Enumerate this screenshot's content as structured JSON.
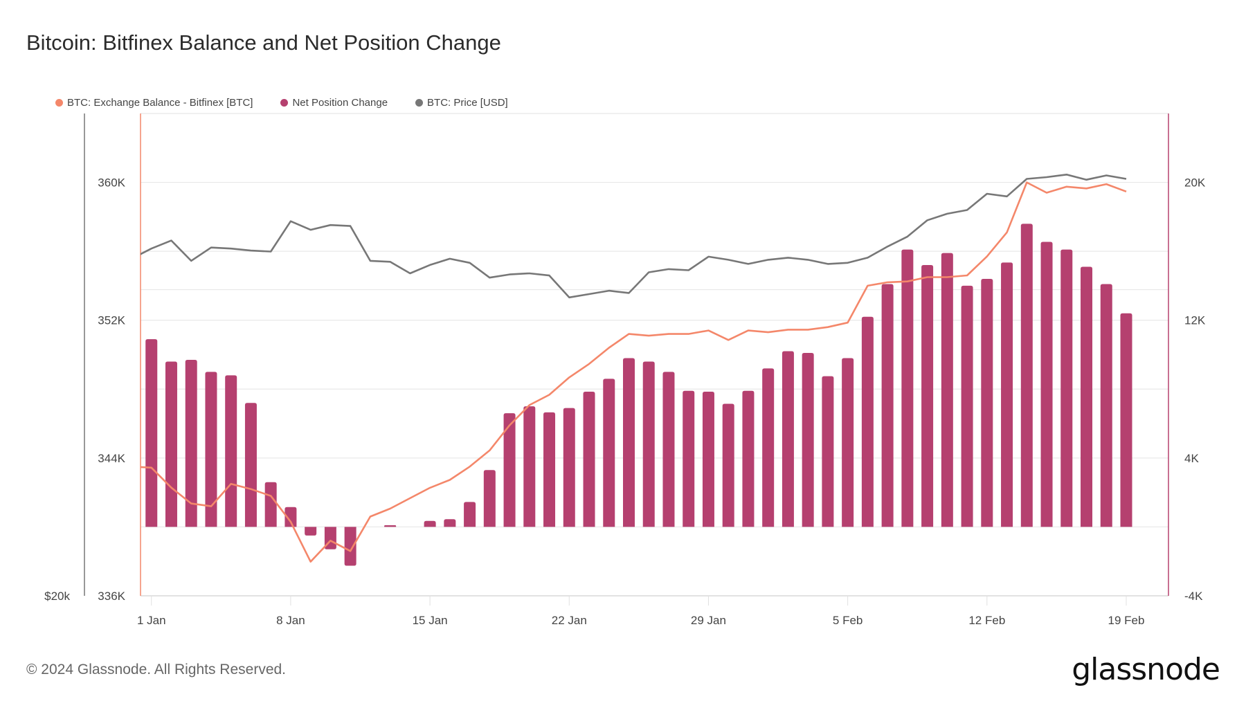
{
  "title": "Bitcoin: Bitfinex Balance and Net Position Change",
  "footer": "© 2024 Glassnode. All Rights Reserved.",
  "logo": "glassnode",
  "legend": [
    {
      "label": "BTC: Exchange Balance - Bitfinex [BTC]",
      "color": "#f4876a"
    },
    {
      "label": "Net Position Change",
      "color": "#b5406f"
    },
    {
      "label": "BTC: Price [USD]",
      "color": "#777777"
    }
  ],
  "chart_data": {
    "type": "bar+line",
    "title": "Bitcoin: Bitfinex Balance and Net Position Change",
    "x_tick_labels": [
      "1 Jan",
      "8 Jan",
      "15 Jan",
      "22 Jan",
      "29 Jan",
      "5 Feb",
      "12 Feb",
      "19 Feb"
    ],
    "left_axis": {
      "ticks": [
        "336K",
        "344K",
        "352K",
        "360K"
      ],
      "ylim": [
        336000,
        364000
      ]
    },
    "right_axis": {
      "ticks": [
        "-4K",
        "4K",
        "12K",
        "20K"
      ],
      "ylim": [
        -4000,
        24000
      ]
    },
    "price_axis": {
      "ticks": [
        "$20k"
      ],
      "scale": "log",
      "ylim": [
        20000,
        59600
      ]
    },
    "grid": true,
    "legend_position": "top-left",
    "dates": [
      "31 Dec",
      "1 Jan",
      "2 Jan",
      "3 Jan",
      "4 Jan",
      "5 Jan",
      "6 Jan",
      "7 Jan",
      "8 Jan",
      "9 Jan",
      "10 Jan",
      "11 Jan",
      "12 Jan",
      "13 Jan",
      "14 Jan",
      "15 Jan",
      "16 Jan",
      "17 Jan",
      "18 Jan",
      "19 Jan",
      "20 Jan",
      "21 Jan",
      "22 Jan",
      "23 Jan",
      "24 Jan",
      "25 Jan",
      "26 Jan",
      "27 Jan",
      "28 Jan",
      "29 Jan",
      "30 Jan",
      "31 Jan",
      "1 Feb",
      "2 Feb",
      "3 Feb",
      "4 Feb",
      "5 Feb",
      "6 Feb",
      "7 Feb",
      "8 Feb",
      "9 Feb",
      "10 Feb",
      "11 Feb",
      "12 Feb",
      "13 Feb",
      "14 Feb",
      "15 Feb",
      "16 Feb",
      "17 Feb",
      "18 Feb",
      "19 Feb"
    ],
    "series": [
      {
        "name": "BTC: Exchange Balance - Bitfinex [BTC]",
        "axis": "left",
        "type": "line",
        "color": "#f4876a",
        "values": [
          343500,
          343440,
          342280,
          341360,
          341200,
          342500,
          342200,
          341800,
          340300,
          337980,
          339200,
          338600,
          340600,
          341060,
          341670,
          342270,
          342730,
          343500,
          344440,
          345900,
          347070,
          347670,
          348680,
          349460,
          350400,
          351200,
          351100,
          351200,
          351200,
          351400,
          350850,
          351400,
          351300,
          351450,
          351450,
          351600,
          351860,
          354000,
          354200,
          354250,
          354500,
          354500,
          354600,
          355700,
          357100,
          360000,
          359400,
          359750,
          359650,
          359900,
          359470
        ]
      },
      {
        "name": "Net Position Change",
        "axis": "right",
        "type": "bar",
        "color": "#b5406f",
        "values": [
          null,
          10900,
          9600,
          9700,
          9000,
          8800,
          7200,
          2600,
          1150,
          -500,
          -1300,
          -2250,
          0,
          100,
          0,
          350,
          450,
          1450,
          3300,
          6600,
          7000,
          6650,
          6900,
          7850,
          8600,
          9800,
          9600,
          9000,
          7900,
          7850,
          7150,
          7900,
          9200,
          10200,
          10100,
          8750,
          9800,
          12200,
          14100,
          16100,
          15200,
          15900,
          14000,
          14400,
          15350,
          17600,
          16550,
          16100,
          15100,
          14100,
          12400
        ]
      },
      {
        "name": "BTC: Price [USD]",
        "axis": "price",
        "type": "line",
        "color": "#777777",
        "values": [
          42900,
          43900,
          44700,
          42700,
          44000,
          43900,
          43700,
          43600,
          46700,
          45800,
          46300,
          46200,
          42700,
          42600,
          41500,
          42300,
          42900,
          42500,
          41100,
          41400,
          41500,
          41300,
          39300,
          39600,
          39900,
          39700,
          41600,
          41900,
          41800,
          43100,
          42800,
          42400,
          42800,
          43000,
          42800,
          42400,
          42500,
          43000,
          44100,
          45100,
          46800,
          47500,
          47900,
          49700,
          49400,
          51400,
          51600,
          51900,
          51300,
          51800,
          51400
        ]
      }
    ]
  }
}
